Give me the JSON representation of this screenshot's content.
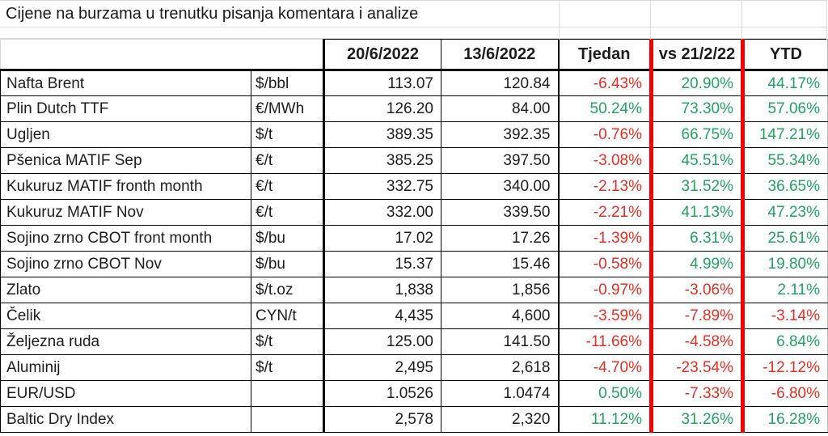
{
  "title": "Cijene na burzama u trenutku pisanja komentara i analize",
  "colors": {
    "positive": "#21a263",
    "negative": "#e92d22",
    "divider_red": "#f20000",
    "border_black": "#000000",
    "gridline_gray": "#d8d8d8"
  },
  "chart_data": {
    "type": "table",
    "title": "Cijene na burzama u trenutku pisanja komentara i analize",
    "columns": [
      "",
      "",
      "20/6/2022",
      "13/6/2022",
      "Tjedan",
      "vs 21/2/22",
      "YTD"
    ],
    "rows": [
      {
        "name": "Nafta Brent",
        "unit": "$/bbl",
        "price_20_6": "113.07",
        "price_13_6": "120.84",
        "week": "-6.43%",
        "vs_21_2": "20.90%",
        "ytd": "44.17%"
      },
      {
        "name": "Plin Dutch TTF",
        "unit": "€/MWh",
        "price_20_6": "126.20",
        "price_13_6": "84.00",
        "week": "50.24%",
        "vs_21_2": "73.30%",
        "ytd": "57.06%"
      },
      {
        "name": "Ugljen",
        "unit": "$/t",
        "price_20_6": "389.35",
        "price_13_6": "392.35",
        "week": "-0.76%",
        "vs_21_2": "66.75%",
        "ytd": "147.21%"
      },
      {
        "name": "Pšenica MATIF Sep",
        "unit": "€/t",
        "price_20_6": "385.25",
        "price_13_6": "397.50",
        "week": "-3.08%",
        "vs_21_2": "45.51%",
        "ytd": "55.34%"
      },
      {
        "name": "Kukuruz MATIF fronth month",
        "unit": "€/t",
        "price_20_6": "332.75",
        "price_13_6": "340.00",
        "week": "-2.13%",
        "vs_21_2": "31.52%",
        "ytd": "36.65%"
      },
      {
        "name": "Kukuruz MATIF Nov",
        "unit": "€/t",
        "price_20_6": "332.00",
        "price_13_6": "339.50",
        "week": "-2.21%",
        "vs_21_2": "41.13%",
        "ytd": "47.23%"
      },
      {
        "name": "Sojino zrno CBOT front month",
        "unit": "$/bu",
        "price_20_6": "17.02",
        "price_13_6": "17.26",
        "week": "-1.39%",
        "vs_21_2": "6.31%",
        "ytd": "25.61%"
      },
      {
        "name": "Sojino zrno CBOT Nov",
        "unit": "$/bu",
        "price_20_6": "15.37",
        "price_13_6": "15.46",
        "week": "-0.58%",
        "vs_21_2": "4.99%",
        "ytd": "19.80%"
      },
      {
        "name": "Zlato",
        "unit": "$/t.oz",
        "price_20_6": "1,838",
        "price_13_6": "1,856",
        "week": "-0.97%",
        "vs_21_2": "-3.06%",
        "ytd": "2.11%"
      },
      {
        "name": "Čelik",
        "unit": "CYN/t",
        "price_20_6": "4,435",
        "price_13_6": "4,600",
        "week": "-3.59%",
        "vs_21_2": "-7.89%",
        "ytd": "-3.14%"
      },
      {
        "name": "Željezna ruda",
        "unit": "$/t",
        "price_20_6": "125.00",
        "price_13_6": "141.50",
        "week": "-11.66%",
        "vs_21_2": "-4.58%",
        "ytd": "6.84%"
      },
      {
        "name": "Aluminij",
        "unit": "$/t",
        "price_20_6": "2,495",
        "price_13_6": "2,618",
        "week": "-4.70%",
        "vs_21_2": "-23.54%",
        "ytd": "-12.12%"
      },
      {
        "name": "EUR/USD",
        "unit": "",
        "price_20_6": "1.0526",
        "price_13_6": "1.0474",
        "week": "0.50%",
        "vs_21_2": "-7.33%",
        "ytd": "-6.80%"
      },
      {
        "name": "Baltic Dry Index",
        "unit": "",
        "price_20_6": "2,578",
        "price_13_6": "2,320",
        "week": "11.12%",
        "vs_21_2": "31.26%",
        "ytd": "16.28%"
      }
    ]
  }
}
